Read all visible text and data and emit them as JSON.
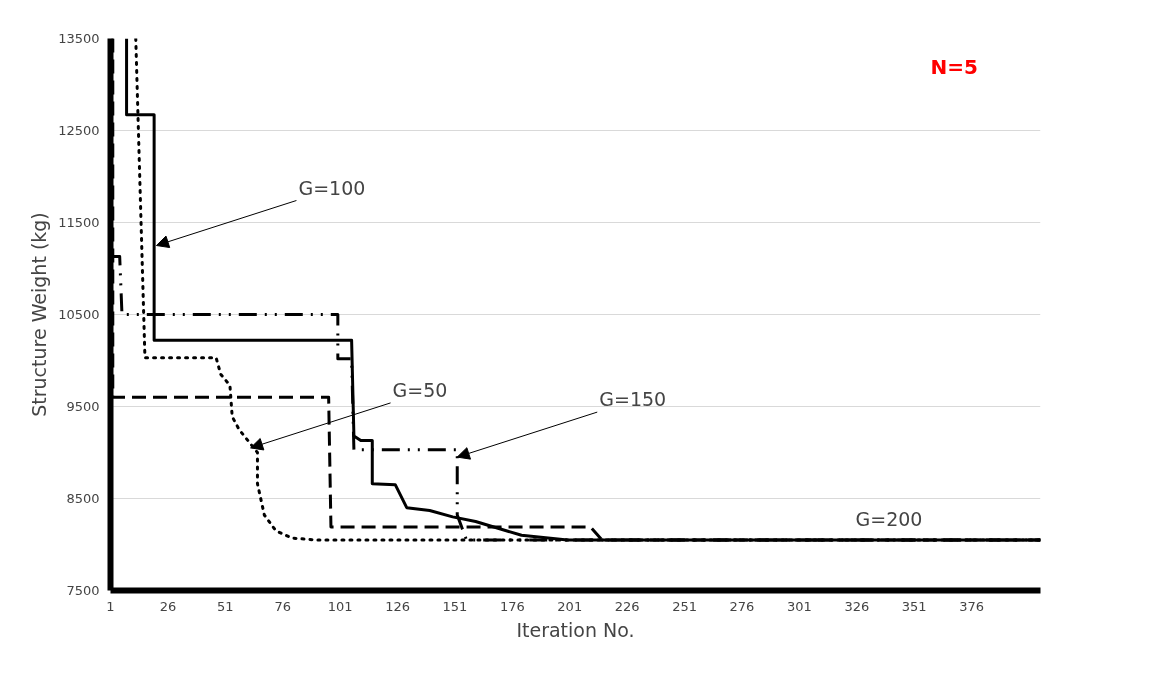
{
  "chart_data": {
    "type": "line",
    "xlabel": "Iteration No.",
    "ylabel": "Structure Weight (kg)",
    "xlim": [
      1,
      406
    ],
    "ylim": [
      7500,
      13500
    ],
    "xticks": [
      1,
      26,
      51,
      76,
      101,
      126,
      151,
      176,
      201,
      226,
      251,
      276,
      301,
      326,
      351,
      376
    ],
    "yticks": [
      7500,
      8500,
      9500,
      10500,
      11500,
      12500,
      13500
    ],
    "grid": "y",
    "series": [
      {
        "color": "#000000",
        "line_style": "solid",
        "x": [
          8,
          8,
          20,
          20,
          106,
          107,
          110,
          115,
          115,
          125,
          130,
          140,
          150,
          160,
          180,
          200,
          406
        ],
        "values": [
          13500,
          12670,
          12670,
          10220,
          10220,
          9180,
          9130,
          9130,
          8660,
          8650,
          8400,
          8370,
          8300,
          8250,
          8100,
          8050,
          8050
        ]
      },
      {
        "color": "#000000",
        "line_style": "dotted",
        "x": [
          12,
          16,
          47,
          49,
          53,
          54,
          57,
          65,
          65,
          68,
          73,
          80,
          90,
          406
        ],
        "values": [
          13500,
          10030,
          10030,
          9850,
          9730,
          9390,
          9250,
          9000,
          8660,
          8320,
          8150,
          8070,
          8050,
          8050
        ]
      },
      {
        "color": "#000000",
        "line_style": "dashdot",
        "x": [
          1,
          5,
          6,
          100,
          100,
          106,
          107,
          152,
          152,
          156,
          406
        ],
        "values": [
          11130,
          11130,
          10500,
          10500,
          10020,
          10020,
          9030,
          9030,
          8320,
          8050,
          8050
        ]
      },
      {
        "color": "#000000",
        "line_style": "dashed",
        "x": [
          2,
          2,
          96,
          97,
          210,
          215,
          406
        ],
        "values": [
          13500,
          9600,
          9600,
          8190,
          8190,
          8050,
          8050
        ]
      }
    ],
    "annotations": [
      {
        "text": "G=100",
        "x": 21,
        "y": 11250
      },
      {
        "text": "G=50",
        "x": 62,
        "y": 9050
      },
      {
        "text": "G=150",
        "x": 152,
        "y": 8950
      },
      {
        "text": "G=200",
        "x": 340,
        "y": 8050
      },
      "N=5"
    ]
  }
}
